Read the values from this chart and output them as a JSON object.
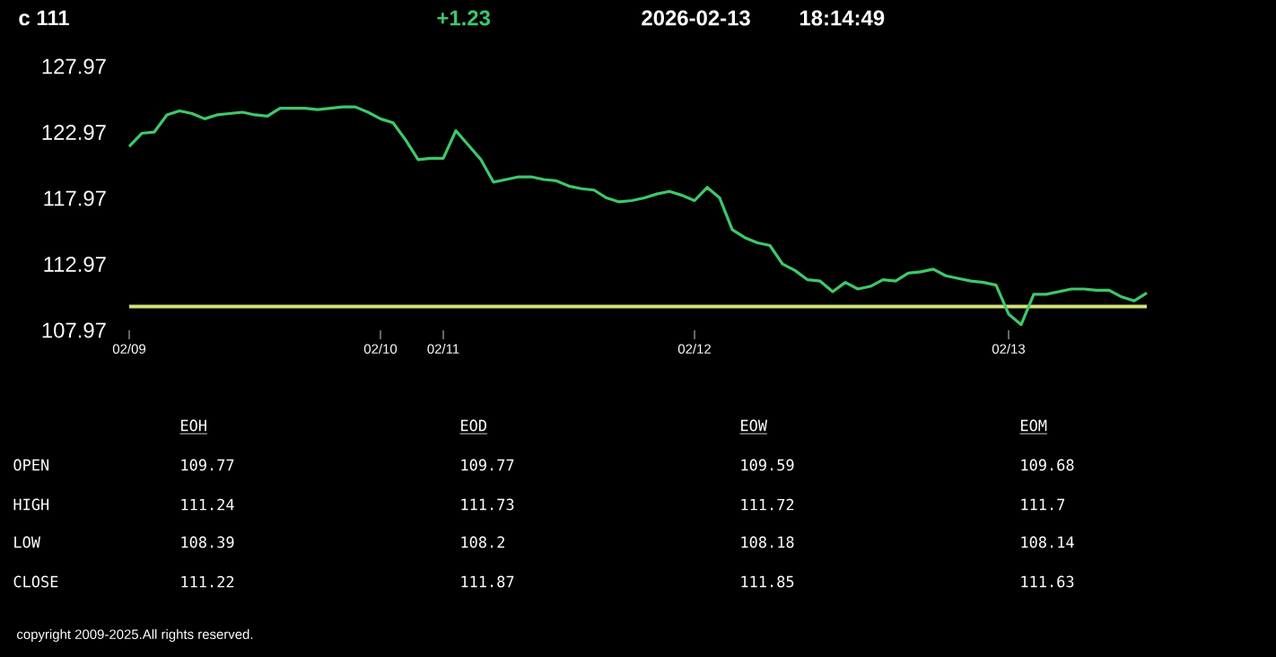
{
  "chart_data": {
    "type": "line",
    "title": "c 111",
    "annotations": [
      "+1.23",
      "2026-02-13",
      "18:14:49",
      "EOH",
      "EOD",
      "EOW",
      "EOM",
      "OPEN",
      "109.77",
      "109.77",
      "109.59",
      "109.68",
      "HIGH",
      "111.24",
      "111.73",
      "111.72",
      "111.7",
      "LOW",
      "108.39",
      "108.2",
      "108.18",
      "108.14",
      "CLOSE",
      "111.22",
      "111.87",
      "111.85",
      "111.63",
      "copyright 2009-2025.All rights reserved."
    ],
    "categories": [
      "02/09",
      null,
      null,
      null,
      null,
      null,
      null,
      null,
      null,
      null,
      null,
      null,
      null,
      null,
      null,
      null,
      null,
      null,
      null,
      null,
      "02/10",
      null,
      null,
      null,
      null,
      "02/11",
      null,
      null,
      null,
      null,
      null,
      null,
      null,
      null,
      null,
      null,
      null,
      null,
      null,
      null,
      null,
      null,
      null,
      null,
      null,
      "02/12",
      null,
      null,
      null,
      null,
      null,
      null,
      null,
      null,
      null,
      null,
      null,
      null,
      null,
      null,
      null,
      null,
      null,
      null,
      null,
      null,
      null,
      null,
      null,
      null,
      "02/13",
      null,
      null,
      null,
      null,
      null,
      null,
      null,
      null,
      null,
      null,
      null
    ],
    "series": [
      {
        "color": "#3ec86a",
        "values": [
          121.9,
          122.9,
          123.0,
          124.3,
          124.6,
          124.4,
          124.0,
          124.3,
          124.4,
          124.5,
          124.3,
          124.2,
          124.8,
          124.8,
          124.8,
          124.7,
          124.8,
          124.9,
          124.9,
          124.5,
          124.0,
          123.7,
          122.4,
          120.9,
          121.0,
          121.0,
          123.1,
          122.0,
          120.9,
          119.2,
          119.4,
          119.6,
          119.6,
          119.4,
          119.3,
          118.9,
          118.7,
          118.6,
          118.0,
          117.7,
          117.8,
          118.0,
          118.3,
          118.5,
          118.2,
          117.8,
          118.8,
          118.0,
          115.6,
          115.0,
          114.6,
          114.4,
          113.0,
          112.5,
          111.8,
          111.7,
          110.9,
          111.6,
          111.1,
          111.3,
          111.8,
          111.7,
          112.3,
          112.4,
          112.6,
          112.1,
          111.9,
          111.7,
          111.6,
          111.4,
          109.2,
          108.4,
          110.7,
          110.7,
          110.9,
          111.1,
          111.1,
          111.0,
          111.0,
          110.5,
          110.2,
          110.8
        ]
      }
    ],
    "ylim": [
      107.97,
      127.97
    ],
    "yticks": [
      107.97,
      112.97,
      117.97,
      122.97,
      127.97
    ],
    "ref_lines": [
      {
        "axis": "y",
        "value": 109.77,
        "color": "#d4e07a"
      }
    ],
    "marker": "none",
    "line_style": "solid"
  }
}
